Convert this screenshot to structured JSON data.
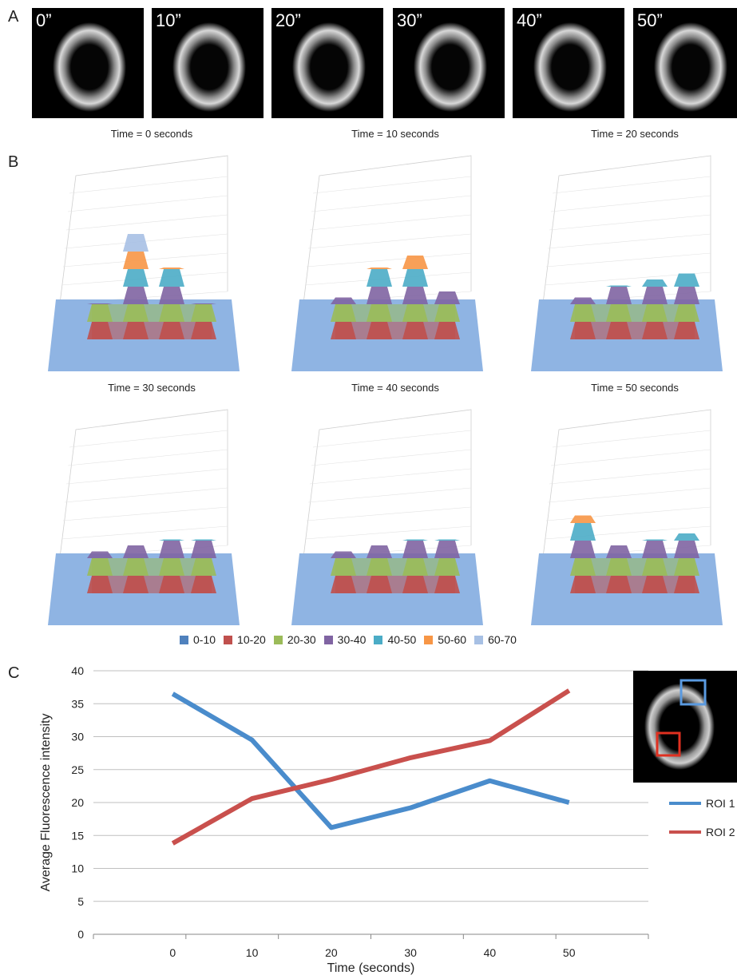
{
  "panels": {
    "a": "A",
    "b": "B",
    "c": "C"
  },
  "frames": [
    {
      "label": "0”"
    },
    {
      "label": "10”"
    },
    {
      "label": "20”"
    },
    {
      "label": "30”"
    },
    {
      "label": "40”"
    },
    {
      "label": "50”"
    }
  ],
  "surfaces": [
    {
      "title": "Time = 0 seconds",
      "peaks": [
        0.3,
        0.9,
        0.6,
        0.3
      ]
    },
    {
      "title": "Time = 10 seconds",
      "peaks": [
        0.35,
        0.6,
        0.7,
        0.4
      ]
    },
    {
      "title": "Time = 20 seconds",
      "peaks": [
        0.35,
        0.45,
        0.5,
        0.55
      ]
    },
    {
      "title": "Time = 30 seconds",
      "peaks": [
        0.35,
        0.4,
        0.45,
        0.45
      ]
    },
    {
      "title": "Time = 40 seconds",
      "peaks": [
        0.35,
        0.4,
        0.45,
        0.45
      ]
    },
    {
      "title": "Time = 50 seconds",
      "peaks": [
        0.65,
        0.4,
        0.45,
        0.5
      ]
    }
  ],
  "legend_b": [
    {
      "label": "0-10",
      "color": "#4f81bd"
    },
    {
      "label": "10-20",
      "color": "#c0504d"
    },
    {
      "label": "20-30",
      "color": "#9bbb59"
    },
    {
      "label": "30-40",
      "color": "#8064a2"
    },
    {
      "label": "40-50",
      "color": "#4bacc6"
    },
    {
      "label": "50-60",
      "color": "#f79646"
    },
    {
      "label": "60-70",
      "color": "#a7c0e4"
    }
  ],
  "roi_legend": [
    {
      "label": "ROI 1",
      "color": "#4a8ccc"
    },
    {
      "label": "ROI 2",
      "color": "#c9504d"
    }
  ],
  "chart_data": {
    "type": "line",
    "x": [
      0,
      10,
      20,
      30,
      40,
      50
    ],
    "series": [
      {
        "name": "ROI 1",
        "values": [
          36.5,
          29.5,
          16.2,
          19.2,
          23.3,
          20.0
        ],
        "color": "#4a8ccc"
      },
      {
        "name": "ROI 2",
        "values": [
          13.8,
          20.6,
          23.5,
          26.8,
          29.4,
          37.0
        ],
        "color": "#c9504d"
      }
    ],
    "xlabel": "Time (seconds)",
    "ylabel": "Average Fluorescence intensity",
    "ylim": [
      0,
      40
    ],
    "yticks": [
      0,
      5,
      10,
      15,
      20,
      25,
      30,
      35,
      40
    ],
    "grid": true,
    "legend": "right"
  }
}
